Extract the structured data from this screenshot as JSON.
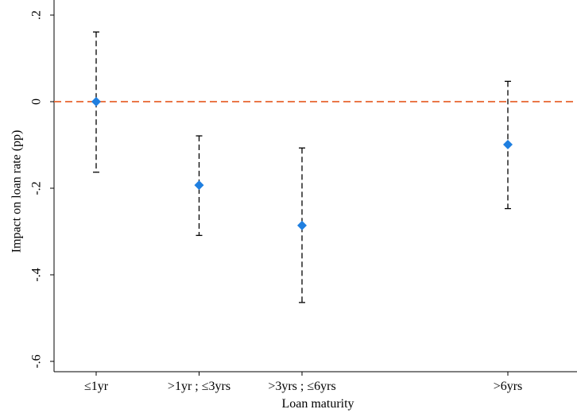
{
  "chart_data": {
    "type": "scatter",
    "xlabel": "Loan maturity",
    "ylabel": "Impact on loan rate (pp)",
    "categories": [
      {
        "label": "≤1yr",
        "x": 1
      },
      {
        "label": ">1yr ; ≤3yrs",
        "x": 2
      },
      {
        "label": ">3yrs ; ≤6yrs",
        "x": 3
      },
      {
        "label": ">6yrs",
        "x": 5
      }
    ],
    "points": [
      {
        "x": 1,
        "estimate": 0.0,
        "ci_low": -0.163,
        "ci_high": 0.161
      },
      {
        "x": 2,
        "estimate": -0.193,
        "ci_low": -0.309,
        "ci_high": -0.079
      },
      {
        "x": 3,
        "estimate": -0.286,
        "ci_low": -0.464,
        "ci_high": -0.107
      },
      {
        "x": 5,
        "estimate": -0.099,
        "ci_low": -0.247,
        "ci_high": 0.047
      }
    ],
    "yticks": [
      0.2,
      0,
      -0.2,
      -0.4,
      -0.6
    ],
    "ytick_labels": [
      ".2",
      "0",
      "-.2",
      "-.4",
      "-.6"
    ],
    "xlim": [
      0.6,
      5.35
    ],
    "ylim": [
      -0.63,
      0.23
    ],
    "reference_line": {
      "y": 0,
      "style": "dashed"
    },
    "grid": false,
    "colors": {
      "marker": "#1f7fe0",
      "reference_line": "#e8642f",
      "error_bar": "#000000"
    }
  }
}
